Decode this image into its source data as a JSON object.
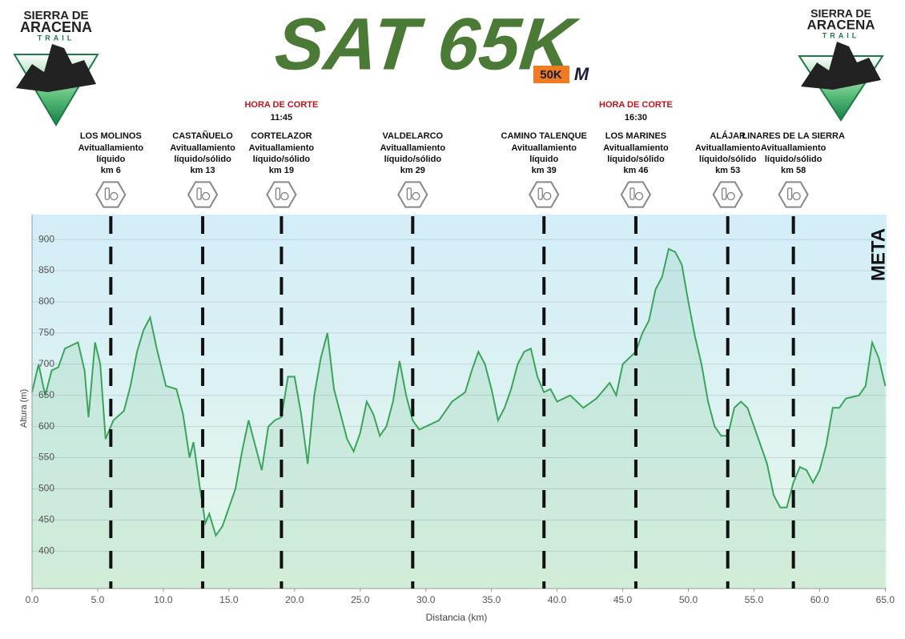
{
  "logo": {
    "line1": "SIERRA DE",
    "line2": "ARACENA",
    "line3": "TRAIL"
  },
  "title": "SAT 65K",
  "badge": {
    "distance": "50K",
    "mark": "M"
  },
  "chart_data": {
    "type": "line",
    "ylabel": "Altura (m)",
    "xlabel": "Distancia  (km)",
    "finish_label": "META",
    "color": "#3aa55a",
    "grid": true,
    "xlim": [
      0,
      65.1
    ],
    "ylim": [
      340,
      940
    ],
    "xticks": [
      {
        "value": 0,
        "label": "0.0"
      },
      {
        "value": 5,
        "label": "5.0"
      },
      {
        "value": 10,
        "label": "10.0"
      },
      {
        "value": 15,
        "label": "15.0"
      },
      {
        "value": 20,
        "label": "20.0"
      },
      {
        "value": 25,
        "label": "25.0"
      },
      {
        "value": 30,
        "label": "30.0"
      },
      {
        "value": 35,
        "label": "35.0"
      },
      {
        "value": 40,
        "label": "40.0"
      },
      {
        "value": 45,
        "label": "45.0"
      },
      {
        "value": 50,
        "label": "50.0"
      },
      {
        "value": 55,
        "label": "55.0"
      },
      {
        "value": 60,
        "label": "60.0"
      },
      {
        "value": 65,
        "label": "65.0"
      }
    ],
    "yticks": [
      400,
      450,
      500,
      550,
      600,
      650,
      700,
      750,
      800,
      850,
      900
    ],
    "x": [
      0,
      0.5,
      1.0,
      1.5,
      2.0,
      2.5,
      3.0,
      3.5,
      4.0,
      4.3,
      4.8,
      5.2,
      5.6,
      6.2,
      7.0,
      7.5,
      8.0,
      8.5,
      9.0,
      9.5,
      10.2,
      11.0,
      11.5,
      12.0,
      12.3,
      12.8,
      13.2,
      13.5,
      14.0,
      14.5,
      15.0,
      15.5,
      16.0,
      16.5,
      17.0,
      17.5,
      18.0,
      18.5,
      19.0,
      19.5,
      20.0,
      20.5,
      21.0,
      21.5,
      22.0,
      22.5,
      23.0,
      23.5,
      24.0,
      24.5,
      25.0,
      25.5,
      26.0,
      26.5,
      27.0,
      27.5,
      28.0,
      28.5,
      29.0,
      29.5,
      30.0,
      31.0,
      32.0,
      33.0,
      33.5,
      34.0,
      34.5,
      35.0,
      35.5,
      36.0,
      36.5,
      37.0,
      37.5,
      38.0,
      38.5,
      39.0,
      39.5,
      40.0,
      41.0,
      41.5,
      42.0,
      43.0,
      44.0,
      44.5,
      45.0,
      46.0,
      46.5,
      47.0,
      47.5,
      48.0,
      48.5,
      49.0,
      49.5,
      50.0,
      50.5,
      51.0,
      51.5,
      52.0,
      52.5,
      53.0,
      53.5,
      54.0,
      54.5,
      55.0,
      55.5,
      56.0,
      56.5,
      57.0,
      57.5,
      58.0,
      58.5,
      59.0,
      59.5,
      60.0,
      60.5,
      61.0,
      61.5,
      62.0,
      63.0,
      63.5,
      64.0,
      64.5,
      65.0
    ],
    "values": [
      655,
      700,
      650,
      690,
      695,
      725,
      730,
      735,
      690,
      615,
      735,
      700,
      580,
      610,
      625,
      665,
      720,
      755,
      775,
      725,
      665,
      660,
      620,
      550,
      575,
      500,
      445,
      460,
      425,
      440,
      470,
      500,
      560,
      610,
      570,
      530,
      600,
      610,
      615,
      680,
      680,
      620,
      540,
      650,
      710,
      750,
      660,
      620,
      580,
      560,
      590,
      640,
      620,
      585,
      600,
      640,
      705,
      650,
      610,
      595,
      600,
      610,
      640,
      655,
      690,
      720,
      700,
      660,
      610,
      630,
      660,
      700,
      720,
      725,
      680,
      655,
      660,
      640,
      650,
      640,
      630,
      645,
      670,
      650,
      700,
      720,
      750,
      770,
      820,
      840,
      885,
      880,
      860,
      800,
      745,
      700,
      640,
      600,
      585,
      585,
      630,
      640,
      630,
      600,
      570,
      540,
      490,
      470,
      470,
      510,
      535,
      530,
      510,
      530,
      570,
      630,
      630,
      645,
      650,
      665,
      735,
      710,
      665
    ],
    "stations": [
      {
        "name": "LOS MOLINOS",
        "service": [
          "Avituallamiento",
          "líquido"
        ],
        "km": {
          "value": 6,
          "label": "km 6"
        }
      },
      {
        "name": "CASTAÑUELO",
        "service": [
          "Avituallamiento",
          "líquido/sólido"
        ],
        "km": {
          "value": 13,
          "label": "km 13"
        }
      },
      {
        "name": "CORTELAZOR",
        "service": [
          "Avituallamiento",
          "líquido/sólido"
        ],
        "km": {
          "value": 19,
          "label": "km 19"
        },
        "cutoff_label": "HORA DE CORTE",
        "cutoff_time": "11:45"
      },
      {
        "name": "VALDELARCO",
        "service": [
          "Avituallamiento",
          "líquido/sólido"
        ],
        "km": {
          "value": 29,
          "label": "km 29"
        }
      },
      {
        "name": "CAMINO TALENQUE",
        "service": [
          "Avituallamiento",
          "líquido"
        ],
        "km": {
          "value": 39,
          "label": "km 39"
        }
      },
      {
        "name": "LOS MARINES",
        "service": [
          "Avituallamiento",
          "líquido/sólido"
        ],
        "km": {
          "value": 46,
          "label": "km 46"
        },
        "cutoff_label": "HORA DE CORTE",
        "cutoff_time": "16:30"
      },
      {
        "name": "ALÁJAR",
        "service": [
          "Avituallamiento",
          "líquido/sólido"
        ],
        "km": {
          "value": 53,
          "label": "km 53"
        }
      },
      {
        "name": "LINARES DE LA SIERRA",
        "service": [
          "Avituallamiento",
          "líquido/sólido"
        ],
        "km": {
          "value": 58,
          "label": "km 58"
        }
      }
    ]
  }
}
